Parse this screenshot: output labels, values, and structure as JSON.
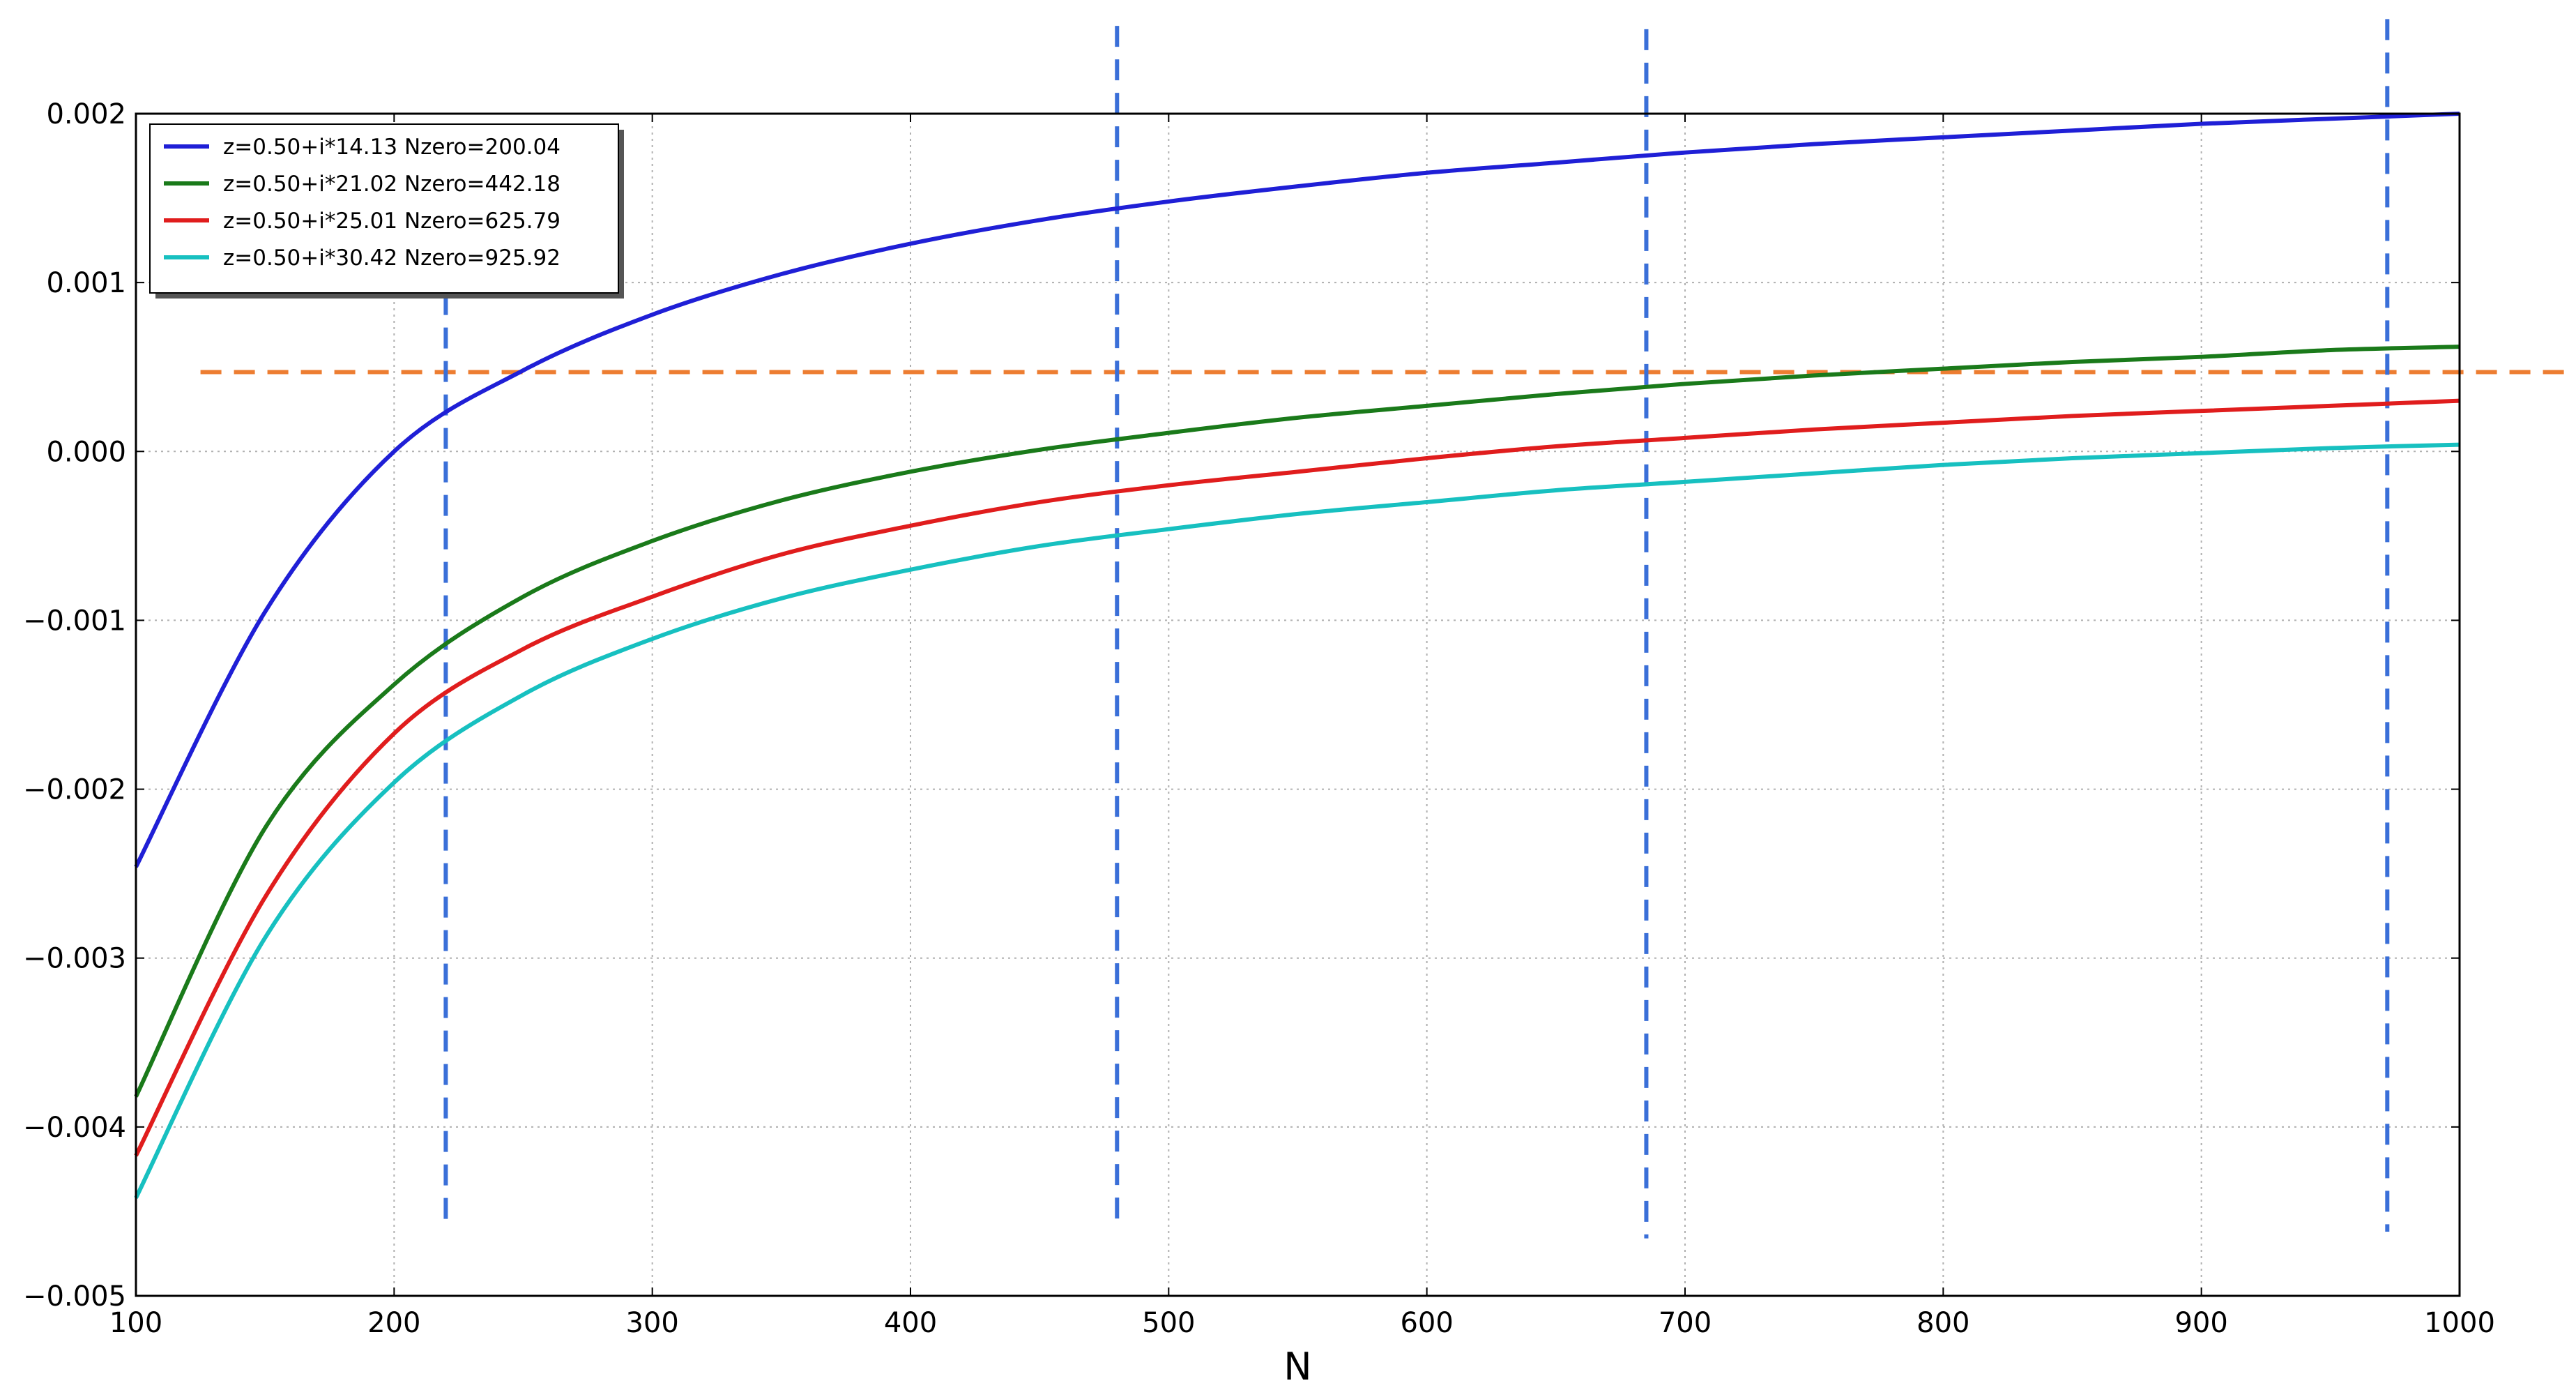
{
  "chart_data": {
    "type": "line",
    "xlabel": "N",
    "ylabel": "",
    "title": "",
    "xlim": [
      100,
      1000
    ],
    "ylim": [
      -0.005,
      0.002
    ],
    "x_ticks": [
      100,
      200,
      300,
      400,
      500,
      600,
      700,
      800,
      900,
      1000
    ],
    "x_tick_labels": [
      "100",
      "200",
      "300",
      "400",
      "500",
      "600",
      "700",
      "800",
      "900",
      "1000"
    ],
    "y_ticks": [
      -0.005,
      -0.004,
      -0.003,
      -0.002,
      -0.001,
      0.0,
      0.001,
      0.002
    ],
    "y_tick_labels": [
      "−0.005",
      "−0.004",
      "−0.003",
      "−0.002",
      "−0.001",
      "0.000",
      "0.001",
      "0.002"
    ],
    "grid": true,
    "legend_position": "top-left",
    "series": [
      {
        "name": "z=0.50+i*14.13 Nzero=200.04",
        "color": "#1f1fd6",
        "x": [
          100,
          150,
          200,
          250,
          300,
          350,
          400,
          450,
          500,
          550,
          600,
          650,
          700,
          750,
          800,
          850,
          900,
          950,
          1000
        ],
        "y": [
          -0.00246,
          -0.00095,
          0.0,
          0.00048,
          0.00081,
          0.00105,
          0.00123,
          0.00137,
          0.00148,
          0.00157,
          0.00165,
          0.00171,
          0.00177,
          0.00182,
          0.00186,
          0.0019,
          0.00194,
          0.00197,
          0.002
        ]
      },
      {
        "name": "z=0.50+i*21.02 Nzero=442.18",
        "color": "#1a7a1a",
        "x": [
          100,
          150,
          200,
          250,
          300,
          350,
          400,
          450,
          500,
          550,
          600,
          650,
          700,
          750,
          800,
          850,
          900,
          950,
          1000
        ],
        "y": [
          -0.00382,
          -0.00223,
          -0.00138,
          -0.00086,
          -0.00053,
          -0.00029,
          -0.00012,
          1e-05,
          0.00011,
          0.0002,
          0.00027,
          0.00034,
          0.0004,
          0.00045,
          0.00049,
          0.00053,
          0.00056,
          0.0006,
          0.00062
        ]
      },
      {
        "name": "z=0.50+i*25.01 Nzero=625.79",
        "color": "#e01d1d",
        "x": [
          100,
          150,
          200,
          250,
          300,
          350,
          400,
          450,
          500,
          550,
          600,
          650,
          700,
          750,
          800,
          850,
          900,
          950,
          1000
        ],
        "y": [
          -0.00417,
          -0.00264,
          -0.00167,
          -0.00117,
          -0.00086,
          -0.00061,
          -0.00044,
          -0.0003,
          -0.0002,
          -0.00012,
          -4e-05,
          3e-05,
          8e-05,
          0.00013,
          0.00017,
          0.00021,
          0.00024,
          0.00027,
          0.0003
        ]
      },
      {
        "name": "z=0.50+i*30.42 Nzero=925.92",
        "color": "#17c0c0",
        "x": [
          100,
          150,
          200,
          250,
          300,
          350,
          400,
          450,
          500,
          550,
          600,
          650,
          700,
          750,
          800,
          850,
          900,
          950,
          1000
        ],
        "y": [
          -0.00442,
          -0.00288,
          -0.00196,
          -0.00144,
          -0.00111,
          -0.00087,
          -0.0007,
          -0.00056,
          -0.00046,
          -0.00037,
          -0.0003,
          -0.00023,
          -0.00018,
          -0.00013,
          -8e-05,
          -4e-05,
          -1e-05,
          2e-05,
          4e-05
        ]
      }
    ],
    "annotations": {
      "horizontal_dashed": {
        "color": "#ed7d31",
        "y": 0.00047,
        "x_start": 125,
        "x_end": 1045
      },
      "vertical_dashed": [
        {
          "color": "#3a6fd8",
          "x": 220,
          "y_top": 0.00113,
          "y_bottom": -0.00458
        },
        {
          "color": "#3a6fd8",
          "x": 480,
          "y_top": 0.00252,
          "y_bottom": -0.00458
        },
        {
          "color": "#3a6fd8",
          "x": 685,
          "y_top": 0.0025,
          "y_bottom": -0.00466
        },
        {
          "color": "#3a6fd8",
          "x": 972,
          "y_top": 0.00256,
          "y_bottom": -0.00462
        }
      ]
    }
  }
}
